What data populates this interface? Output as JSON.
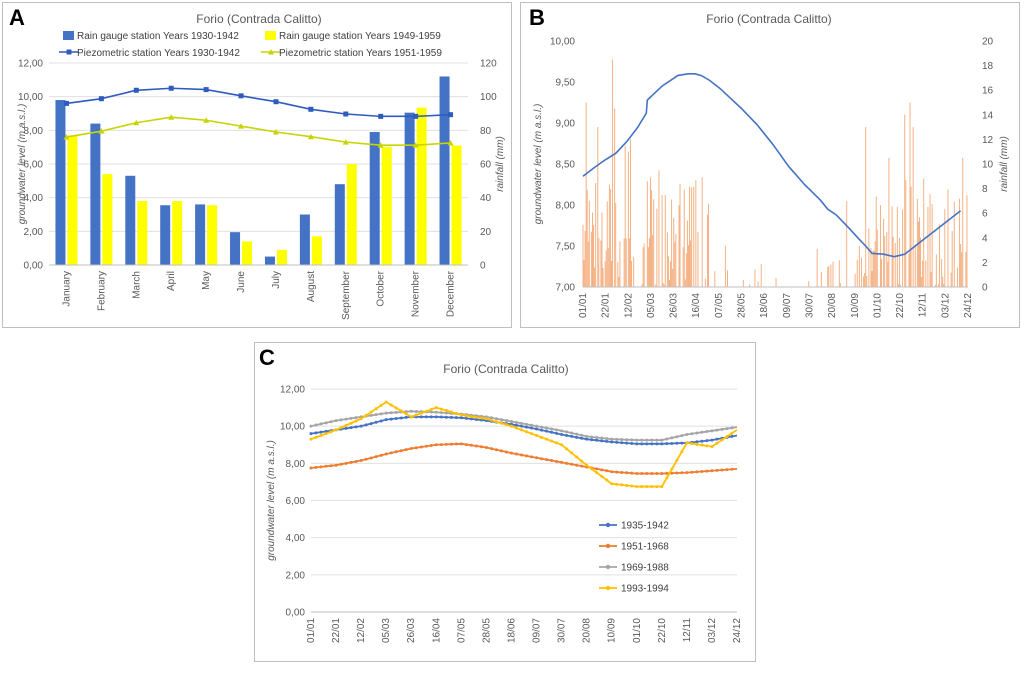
{
  "panels": {
    "a_letter": "A",
    "b_letter": "B",
    "c_letter": "C"
  },
  "chart_data": [
    {
      "id": "A",
      "type": "bar+line",
      "title": "Forio (Contrada Calitto)",
      "categories": [
        "January",
        "February",
        "March",
        "April",
        "May",
        "June",
        "July",
        "August",
        "September",
        "October",
        "November",
        "December"
      ],
      "ylabel_left": "groundwater level (m a.s.l.)",
      "ylabel_right": "rainfall (mm)",
      "ylim_left": [
        0,
        12
      ],
      "ylim_right": [
        0,
        120
      ],
      "yticks_left": [
        "0,00",
        "2,00",
        "4,00",
        "6,00",
        "8,00",
        "10,00",
        "12,00"
      ],
      "yticks_right": [
        "0",
        "20",
        "40",
        "60",
        "80",
        "100",
        "120"
      ],
      "bar_series": [
        {
          "name": "Rain gauge station Years 1930-1942",
          "color": "#4472C4",
          "values": [
            98,
            84,
            53,
            35.5,
            36,
            19.5,
            5,
            30,
            48,
            79,
            90.5,
            112
          ]
        },
        {
          "name": "Rain gauge station Years 1949-1959",
          "color": "#FFFF00",
          "values": [
            77,
            54,
            38,
            38,
            35.5,
            14,
            9,
            17,
            60,
            70,
            93.5,
            71
          ]
        }
      ],
      "line_series": [
        {
          "name": "Piezometric station Years 1930-1942",
          "color": "#2E5BBE",
          "values": [
            9.6,
            9.88,
            10.38,
            10.5,
            10.42,
            10.05,
            9.7,
            9.25,
            8.97,
            8.83,
            8.83,
            8.93
          ]
        },
        {
          "name": "Piezometric station Years 1951-1959",
          "color": "#C8D400",
          "values": [
            7.6,
            7.95,
            8.45,
            8.78,
            8.6,
            8.25,
            7.9,
            7.62,
            7.3,
            7.12,
            7.12,
            7.25
          ]
        }
      ]
    },
    {
      "id": "B",
      "type": "bar+line",
      "title": "Forio (Contrada Calitto)",
      "ylabel_left": "groundwater level (m a.s.l.)",
      "ylabel_right": "rainfall (mm)",
      "ylim_left": [
        7,
        10
      ],
      "ylim_right": [
        0,
        20
      ],
      "yticks_left": [
        "7,00",
        "7,50",
        "8,00",
        "8,50",
        "9,00",
        "9,50",
        "10,00"
      ],
      "yticks_right": [
        "0",
        "2",
        "4",
        "6",
        "8",
        "10",
        "12",
        "14",
        "16",
        "18",
        "20"
      ],
      "xticks": [
        "01/01",
        "22/01",
        "12/02",
        "05/03",
        "26/03",
        "16/04",
        "07/05",
        "28/05",
        "18/06",
        "09/07",
        "30/07",
        "20/08",
        "10/09",
        "01/10",
        "22/10",
        "12/11",
        "03/12",
        "24/12"
      ],
      "groundwater_day": [
        0,
        10,
        21,
        31,
        42,
        52,
        60,
        61,
        75,
        90,
        100,
        106,
        112,
        120,
        130,
        140,
        150,
        165,
        180,
        195,
        210,
        225,
        232,
        240,
        252,
        262,
        268,
        274,
        285,
        295,
        305,
        315,
        325,
        335,
        345,
        358
      ],
      "groundwater_level": [
        8.35,
        8.45,
        8.55,
        8.63,
        8.78,
        8.95,
        9.12,
        9.28,
        9.45,
        9.58,
        9.6,
        9.6,
        9.58,
        9.52,
        9.42,
        9.3,
        9.18,
        8.98,
        8.74,
        8.47,
        8.25,
        8.06,
        7.95,
        7.88,
        7.72,
        7.58,
        7.5,
        7.41,
        7.4,
        7.37,
        7.4,
        7.5,
        7.6,
        7.7,
        7.8,
        7.93
      ],
      "rain_color": "#F4B183",
      "line_color": "#4472C4"
    },
    {
      "id": "C",
      "type": "line",
      "title": "Forio (Contrada Calitto)",
      "ylabel": "groundwater level (m a.s.l.)",
      "ylim": [
        0,
        12
      ],
      "yticks": [
        "0,00",
        "2,00",
        "4,00",
        "6,00",
        "8,00",
        "10,00",
        "12,00"
      ],
      "xticks": [
        "01/01",
        "22/01",
        "12/02",
        "05/03",
        "26/03",
        "16/04",
        "07/05",
        "28/05",
        "18/06",
        "09/07",
        "30/07",
        "20/08",
        "10/09",
        "01/10",
        "22/10",
        "12/11",
        "03/12",
        "24/12"
      ],
      "x_days": [
        0,
        21,
        42,
        63,
        84,
        105,
        126,
        147,
        168,
        189,
        210,
        231,
        252,
        273,
        294,
        315,
        336,
        357
      ],
      "series": [
        {
          "name": "1935-1942",
          "color": "#4472C4",
          "values": [
            9.6,
            9.8,
            10.0,
            10.35,
            10.5,
            10.5,
            10.45,
            10.3,
            10.1,
            9.85,
            9.55,
            9.3,
            9.15,
            9.05,
            9.05,
            9.1,
            9.25,
            9.5
          ]
        },
        {
          "name": "1951-1968",
          "color": "#ED7D31",
          "values": [
            7.75,
            7.9,
            8.15,
            8.5,
            8.8,
            9.0,
            9.05,
            8.85,
            8.55,
            8.3,
            8.05,
            7.8,
            7.55,
            7.45,
            7.45,
            7.5,
            7.6,
            7.7
          ]
        },
        {
          "name": "1969-1988",
          "color": "#A5A5A5",
          "values": [
            10.0,
            10.3,
            10.5,
            10.7,
            10.8,
            10.75,
            10.65,
            10.5,
            10.25,
            10.0,
            9.75,
            9.45,
            9.3,
            9.25,
            9.25,
            9.55,
            9.75,
            9.95
          ]
        },
        {
          "name": "1993-1994",
          "color": "#FFC000",
          "values": [
            9.3,
            9.8,
            10.4,
            11.3,
            10.5,
            11.0,
            10.6,
            10.4,
            10.0,
            9.5,
            9.0,
            7.9,
            6.9,
            6.75,
            6.75,
            9.1,
            8.9,
            9.8
          ]
        }
      ]
    }
  ]
}
